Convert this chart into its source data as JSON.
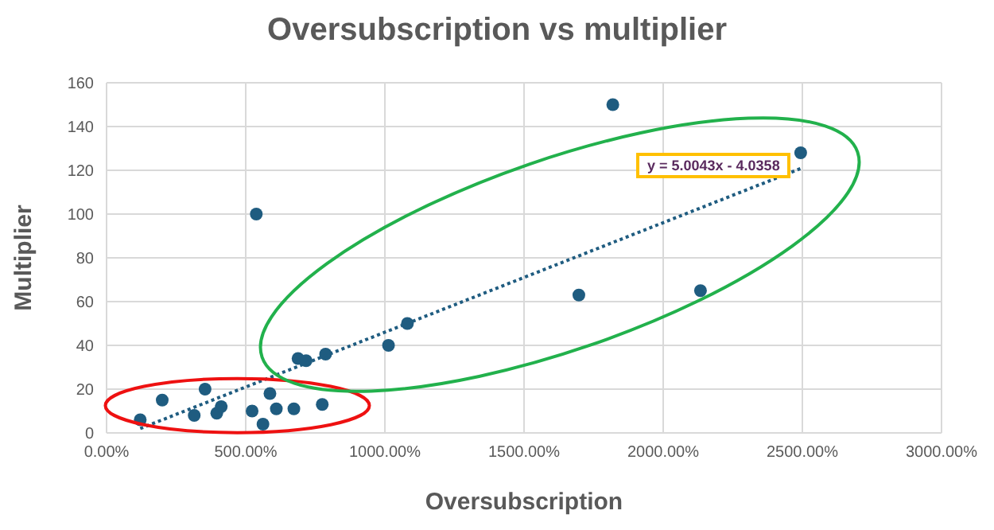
{
  "chart_data": {
    "type": "scatter",
    "title": "Oversubscription vs multiplier",
    "xlabel": "Oversubscription",
    "ylabel": "Multiplier",
    "series": [
      {
        "color": "#1f5c80",
        "marker": "circle",
        "x": [
          121,
          200,
          315,
          354,
          396,
          412,
          523,
          538,
          562,
          587,
          610,
          673,
          688,
          717,
          775,
          787,
          1013,
          1081,
          1697,
          1819,
          2134,
          2494
        ],
        "values": [
          6,
          15,
          8,
          20,
          9,
          12,
          10,
          100,
          4,
          18,
          11,
          11,
          34,
          33,
          13,
          36,
          40,
          50,
          63,
          150,
          65,
          128
        ]
      },
      {
        "type": "line",
        "color": "#1f5c80",
        "marker": "none",
        "line_style": "dotted",
        "x": [
          121,
          2494
        ],
        "values": [
          2.0,
          120.8
        ]
      }
    ],
    "annotations": [
      "y = 5.0043x - 4.0358"
    ],
    "xlim": [
      0,
      3000
    ],
    "xticks": [
      {
        "value": 0,
        "label": "0.00%"
      },
      {
        "value": 500,
        "label": "500.00%"
      },
      {
        "value": 1000,
        "label": "1000.00%"
      },
      {
        "value": 1500,
        "label": "1500.00%"
      },
      {
        "value": 2000,
        "label": "2000.00%"
      },
      {
        "value": 2500,
        "label": "2500.00%"
      },
      {
        "value": 3000,
        "label": "3000.00%"
      }
    ],
    "ylim": [
      0,
      160
    ],
    "yticks": [
      0,
      20,
      40,
      60,
      80,
      100,
      120,
      140,
      160
    ],
    "grid": true,
    "legend": false
  }
}
